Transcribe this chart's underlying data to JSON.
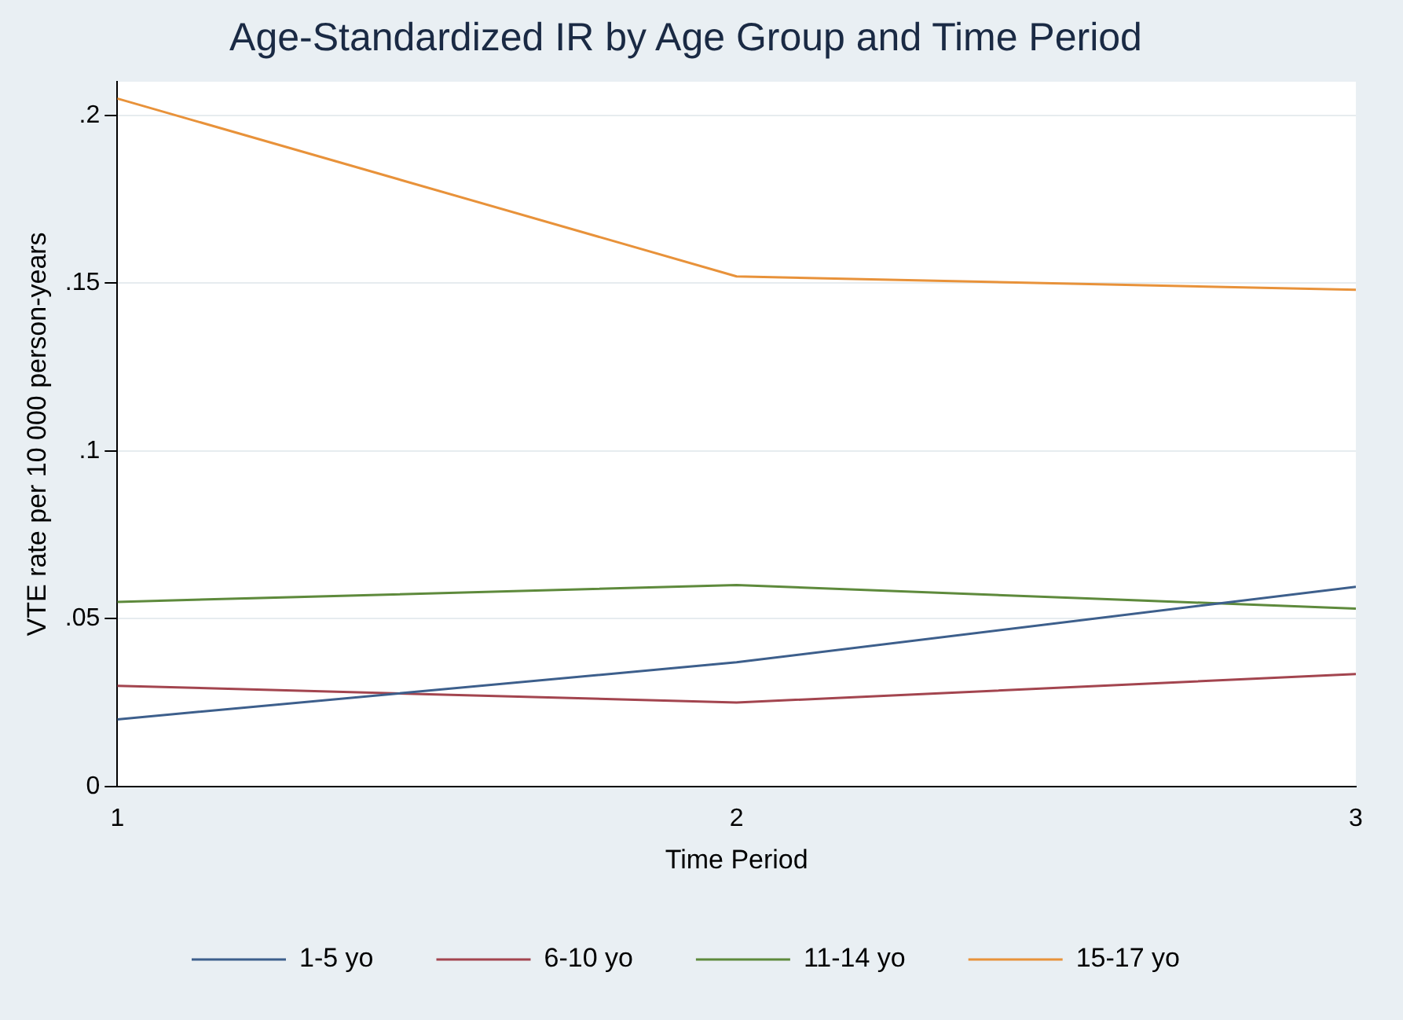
{
  "chart_data": {
    "type": "line",
    "title": "Age-Standardized IR by Age Group and Time Period",
    "xlabel": "Time Period",
    "ylabel": "VTE rate per 10 000 person-years",
    "x": [
      1,
      2,
      3
    ],
    "xlim": [
      1,
      3
    ],
    "xticks": [
      1,
      2,
      3
    ],
    "ylim": [
      0,
      0.21
    ],
    "yticks": [
      {
        "value": 0,
        "label": "0"
      },
      {
        "value": 0.05,
        "label": ".05"
      },
      {
        "value": 0.1,
        "label": ".1"
      },
      {
        "value": 0.15,
        "label": ".15"
      },
      {
        "value": 0.2,
        "label": ".2"
      }
    ],
    "grid": "y",
    "legend": "bottom",
    "marker": "none",
    "line_style": "solid",
    "series": [
      {
        "name": "1-5 yo",
        "color": "#3d5f8c",
        "values": [
          0.02,
          0.037,
          0.0595
        ]
      },
      {
        "name": "6-10 yo",
        "color": "#a3454f",
        "values": [
          0.03,
          0.025,
          0.0335
        ]
      },
      {
        "name": "11-14 yo",
        "color": "#5e8a3c",
        "values": [
          0.055,
          0.06,
          0.053
        ]
      },
      {
        "name": "15-17 yo",
        "color": "#e8923a",
        "values": [
          0.205,
          0.152,
          0.148
        ]
      }
    ]
  }
}
